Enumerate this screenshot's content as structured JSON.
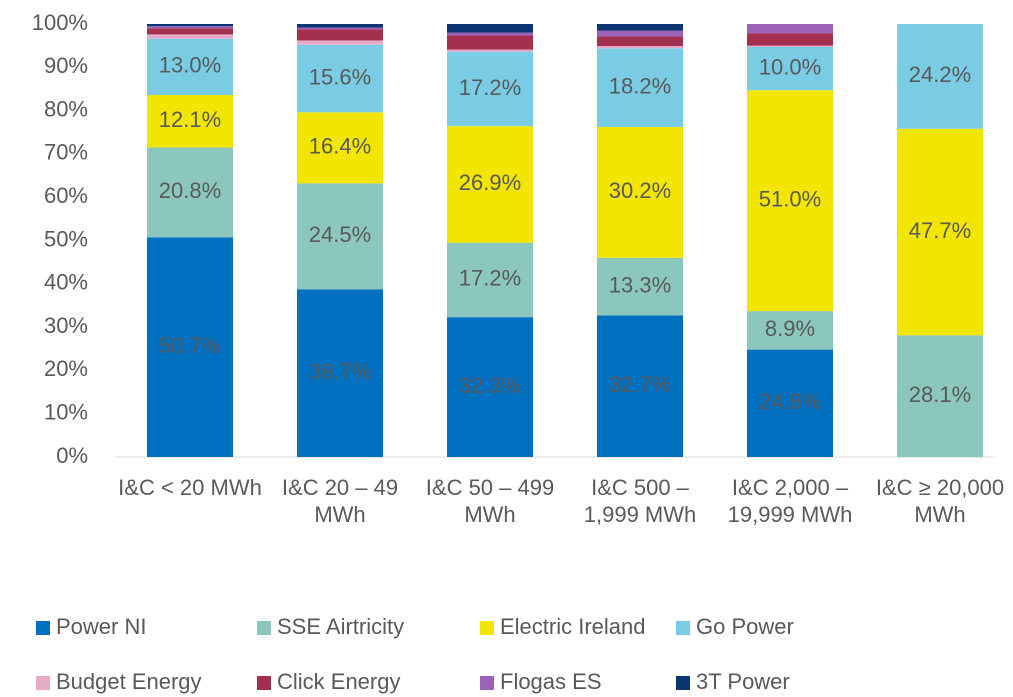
{
  "chart_data": {
    "type": "stacked_bar",
    "categories": [
      "I&C < 20 MWh",
      "I&C 20 – 49 MWh",
      "I&C 50 – 499 MWh",
      "I&C 500 – 1,999 MWh",
      "I&C 2,000 – 19,999 MWh",
      "I&C ≥ 20,000 MWh"
    ],
    "ylim": [
      0,
      100
    ],
    "yticks": [
      {
        "value": 0,
        "label": "0%"
      },
      {
        "value": 10,
        "label": "10%"
      },
      {
        "value": 20,
        "label": "20%"
      },
      {
        "value": 30,
        "label": "30%"
      },
      {
        "value": 40,
        "label": "40%"
      },
      {
        "value": 50,
        "label": "50%"
      },
      {
        "value": 60,
        "label": "60%"
      },
      {
        "value": 70,
        "label": "70%"
      },
      {
        "value": 80,
        "label": "80%"
      },
      {
        "value": 90,
        "label": "90%"
      },
      {
        "value": 100,
        "label": "100%"
      }
    ],
    "grid": false,
    "series": [
      {
        "name": "Power NI",
        "color": "#0070c0",
        "values": [
          50.7,
          38.7,
          32.3,
          32.7,
          24.8,
          0
        ],
        "value_labels": [
          "50.7%",
          "38.7%",
          "32.3%",
          "32.7%",
          "24.8%",
          null
        ]
      },
      {
        "name": "SSE Airtricity",
        "color": "#8cc7bd",
        "values": [
          20.8,
          24.5,
          17.2,
          13.3,
          8.9,
          28.1
        ],
        "value_labels": [
          "20.8%",
          "24.5%",
          "17.2%",
          "13.3%",
          "8.9%",
          "28.1%"
        ]
      },
      {
        "name": "Electric Ireland",
        "color": "#f2e500",
        "values": [
          12.1,
          16.4,
          26.9,
          30.2,
          51.0,
          47.7
        ],
        "value_labels": [
          "12.1%",
          "16.4%",
          "26.9%",
          "30.2%",
          "51.0%",
          "47.7%"
        ]
      },
      {
        "name": "Go Power",
        "color": "#7accE4",
        "values": [
          13.0,
          15.6,
          17.2,
          18.2,
          10.0,
          24.2
        ],
        "value_labels": [
          "13.0%",
          "15.6%",
          "17.2%",
          "18.2%",
          "10.0%",
          "24.2%"
        ]
      },
      {
        "name": "Budget Energy",
        "color": "#e6a9c6",
        "values": [
          1.0,
          1.0,
          0.5,
          0.5,
          0.3,
          0
        ],
        "value_labels": [
          null,
          null,
          null,
          null,
          null,
          null
        ]
      },
      {
        "name": "Click Energy",
        "color": "#a3304f",
        "values": [
          1.4,
          2.6,
          3.3,
          2.2,
          2.8,
          0
        ],
        "value_labels": [
          null,
          null,
          null,
          null,
          null,
          null
        ]
      },
      {
        "name": "Flogas ES",
        "color": "#9b62b8",
        "values": [
          0.5,
          0.4,
          0.6,
          1.4,
          2.2,
          0
        ],
        "value_labels": [
          null,
          null,
          null,
          null,
          null,
          null
        ]
      },
      {
        "name": "3T Power",
        "color": "#0e3573",
        "values": [
          0.5,
          0.8,
          2.0,
          1.5,
          0,
          0
        ],
        "value_labels": [
          null,
          null,
          null,
          null,
          null,
          null
        ]
      }
    ]
  }
}
